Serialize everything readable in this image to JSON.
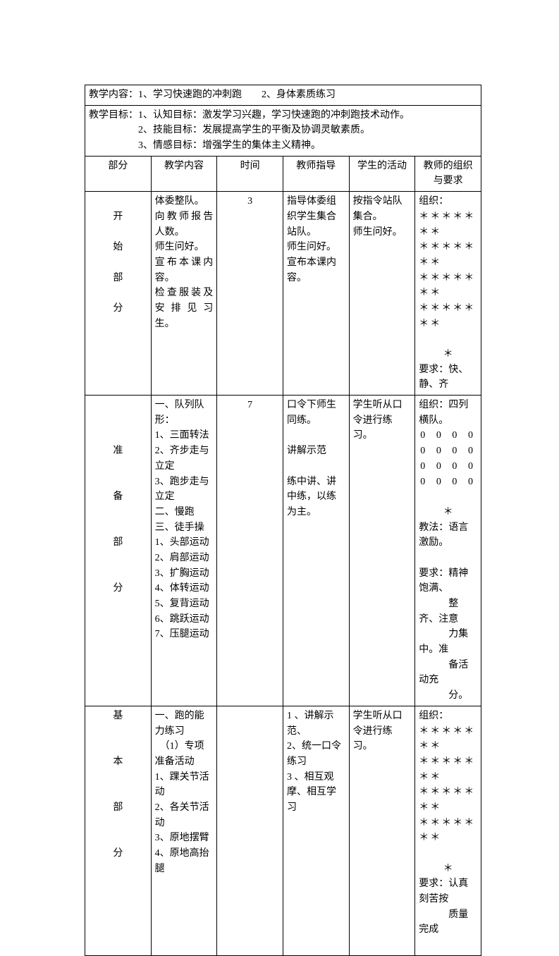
{
  "header": {
    "content": "教学内容：1、学习快速跑的冲刺跑　　2、身体素质练习",
    "objectives_label": "教学目标：",
    "obj1": "1、认知目标：激发学习兴趣，学习快速跑的冲刺跑技术动作。",
    "obj2": "2、技能目标：发展提高学生的平衡及协调灵敏素质。",
    "obj3": "3、情感目标：增强学生的集体主义精神。"
  },
  "cols": {
    "part": "部分",
    "cont": "教学内容",
    "time": "时间",
    "guide": "教师指导",
    "act": "学生的活动",
    "req": "教师的组织与要求"
  },
  "s1": {
    "part": [
      "开",
      "始",
      "部",
      "分"
    ],
    "cont": "体委整队。\n向教师报告人数。\n师生问好。\n宣布本课内容。\n检查服装及安排见习生。",
    "time": "3",
    "guide": "指导体委组织学生集合站队。\n师生问好。\n宣布本课内容。",
    "act": "按指令站队集合。\n师生问好。",
    "req_org_label": "组织：",
    "stars1": "＊＊＊＊＊＊＊",
    "stars2": "＊＊＊＊＊＊＊",
    "stars3": "＊＊＊＊＊＊＊",
    "stars4": "＊＊＊＊＊＊＊",
    "star_mid": "＊",
    "req_text": "要求：快、静、齐"
  },
  "s2": {
    "part": [
      "准",
      "备",
      "部",
      "分"
    ],
    "cont": "一、队列队形：\n1、三面转法\n2、齐步走与立定\n3、跑步走与立定\n二、慢跑\n三、徒手操\n1、头部运动\n2、肩部运动\n3、扩胸运动\n4、体转运动\n5、复背运动\n6、跳跃运动\n7、压腿运动",
    "time": "7",
    "guide": "口令下师生同练。\n\n讲解示范\n\n练中讲、讲中练，以练为主。",
    "act": "学生听从口令进行练习。",
    "req_org": "组织：四列横队。",
    "zeros": "0",
    "star_mid": "＊",
    "req_method": "教法：语言激励。",
    "req_text": "要求：精神饱满、\n　　　整齐、注意\n　　　力集中。准\n　　　备活动充\n　　　分。"
  },
  "s3": {
    "part": [
      "基",
      "本",
      "部",
      "分"
    ],
    "cont": "一、跑的能力练习\n　（1）专项准备活动\n1、踝关节活动\n2、各关节活动\n3、原地摆臂\n4、原地高抬腿",
    "time": "",
    "guide": "1 、讲解示范、\n2、统一口令练习\n3 、相互观摩、相互学习",
    "act": "学生听从口令进行练习。",
    "req_org_label": "组织：",
    "stars1": "＊＊＊＊＊＊＊",
    "stars2": "＊＊＊＊＊＊＊",
    "stars3": "＊＊＊＊＊＊＊",
    "stars4": "＊＊＊＊＊＊＊",
    "star_mid": "＊",
    "req_text": "要求：认真刻苦按\n　　　质量完成"
  }
}
